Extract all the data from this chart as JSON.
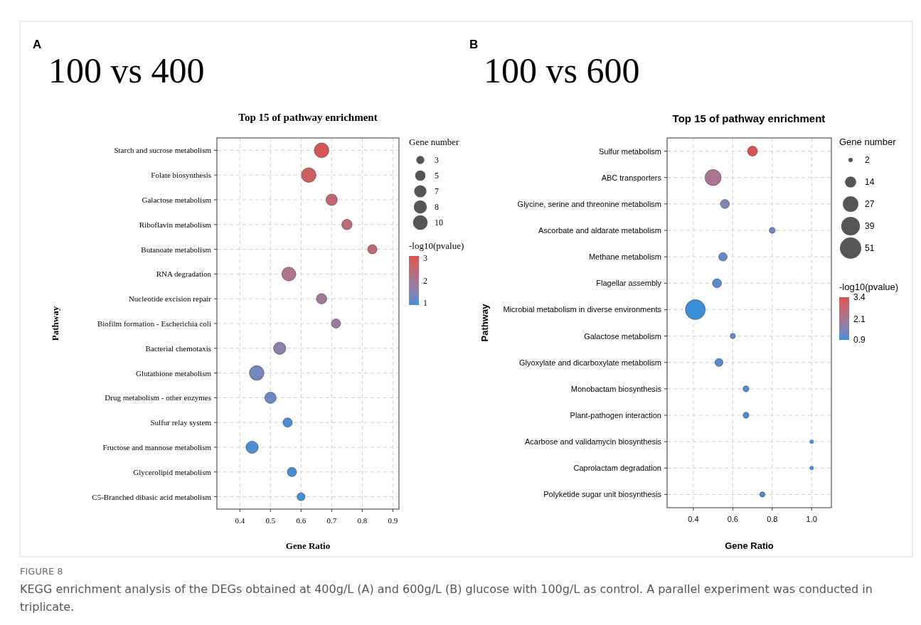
{
  "chart_data": [
    {
      "type": "bubble",
      "orientation": "horizontal",
      "title": "Top 15 of pathway enrichment",
      "xlabel": "Gene Ratio",
      "ylabel": "Pathway",
      "legend_title": "Gene number",
      "clabel": "-log10(pvalue)",
      "annotations": [
        "A",
        "100 vs 400"
      ],
      "categories": [
        "Starch and sucrose metabolism",
        "Folate biosynthesis",
        "Galactose metabolism",
        "Riboflavin metabolism",
        "Butanoate metabolism",
        "RNA degradation",
        "Nucleotide excision repair",
        "Biofilm formation - Escherichia coli",
        "Bacterial chemotaxis",
        "Glutathione metabolism",
        "Drug metabolism - other enzymes",
        "Sulfur relay system",
        "Fructose and mannose metabolism",
        "Glycerolipid metabolism",
        "C5-Branched dibasic acid metabolism"
      ],
      "values": [
        0.667,
        0.625,
        0.7,
        0.75,
        0.833,
        0.56,
        0.667,
        0.714,
        0.53,
        0.455,
        0.5,
        0.556,
        0.44,
        0.57,
        0.6
      ],
      "sizes": [
        10,
        10,
        6,
        5,
        4,
        9,
        5,
        4,
        7,
        10,
        6,
        4,
        7,
        4,
        3
      ],
      "cvalues": [
        3.0,
        2.8,
        2.5,
        2.4,
        2.4,
        2.1,
        1.9,
        1.8,
        1.6,
        1.3,
        1.2,
        1.0,
        1.0,
        0.95,
        0.95
      ],
      "size_legend": [
        3,
        5,
        7,
        8,
        10
      ],
      "clim": [
        0.9,
        3.1
      ],
      "cticks": [
        1,
        2,
        3
      ],
      "xlim": [
        0.325,
        0.92
      ],
      "xticks": [
        0.4,
        0.5,
        0.6,
        0.7,
        0.8,
        0.9
      ],
      "grid": true
    },
    {
      "type": "bubble",
      "orientation": "horizontal",
      "title": "Top 15 of pathway enrichment",
      "xlabel": "Gene Ratio",
      "ylabel": "Pathway",
      "legend_title": "Gene number",
      "clabel": "-log10(pvalue)",
      "annotations": [
        "B",
        "100 vs 600",
        "FIGURE 8",
        "KEGG enrichment analysis of the DEGs obtained at 400g/L (A) and 600g/L (B) glucose with 100g/L as control. A parallel experiment was conducted in triplicate."
      ],
      "categories": [
        "Sulfur metabolism",
        "ABC transporters",
        "Glycine, serine and threonine metabolism",
        "Ascorbate and aldarate metabolism",
        "Methane metabolism",
        "Flagellar assembly",
        "Microbial metabolism in diverse environments",
        "Galactose metabolism",
        "Glyoxylate and dicarboxylate metabolism",
        "Monobactam biosynthesis",
        "Plant-pathogen interaction",
        "Acarbose and validamycin biosynthesis",
        "Caprolactam degradation",
        "Polyketide sugar unit biosynthesis"
      ],
      "values": [
        0.7,
        0.5,
        0.56,
        0.8,
        0.55,
        0.52,
        0.41,
        0.6,
        0.53,
        0.667,
        0.667,
        1.0,
        1.0,
        0.75
      ],
      "sizes": [
        11,
        29,
        9,
        4,
        8,
        9,
        44,
        3,
        7,
        4,
        4,
        2,
        2,
        3
      ],
      "cvalues": [
        3.4,
        2.2,
        1.5,
        1.3,
        1.2,
        1.1,
        0.9,
        1.2,
        1.1,
        1.0,
        1.0,
        1.0,
        1.0,
        1.0
      ],
      "size_legend": [
        2,
        14,
        27,
        39,
        51
      ],
      "clim": [
        0.9,
        3.4
      ],
      "cticks": [
        3.4,
        2.1,
        0.9
      ],
      "xlim": [
        0.267,
        1.1
      ],
      "xticks": [
        0.4,
        0.6,
        0.8,
        {
          "value": 1.0,
          "label": "1.0"
        }
      ],
      "grid": true
    }
  ]
}
